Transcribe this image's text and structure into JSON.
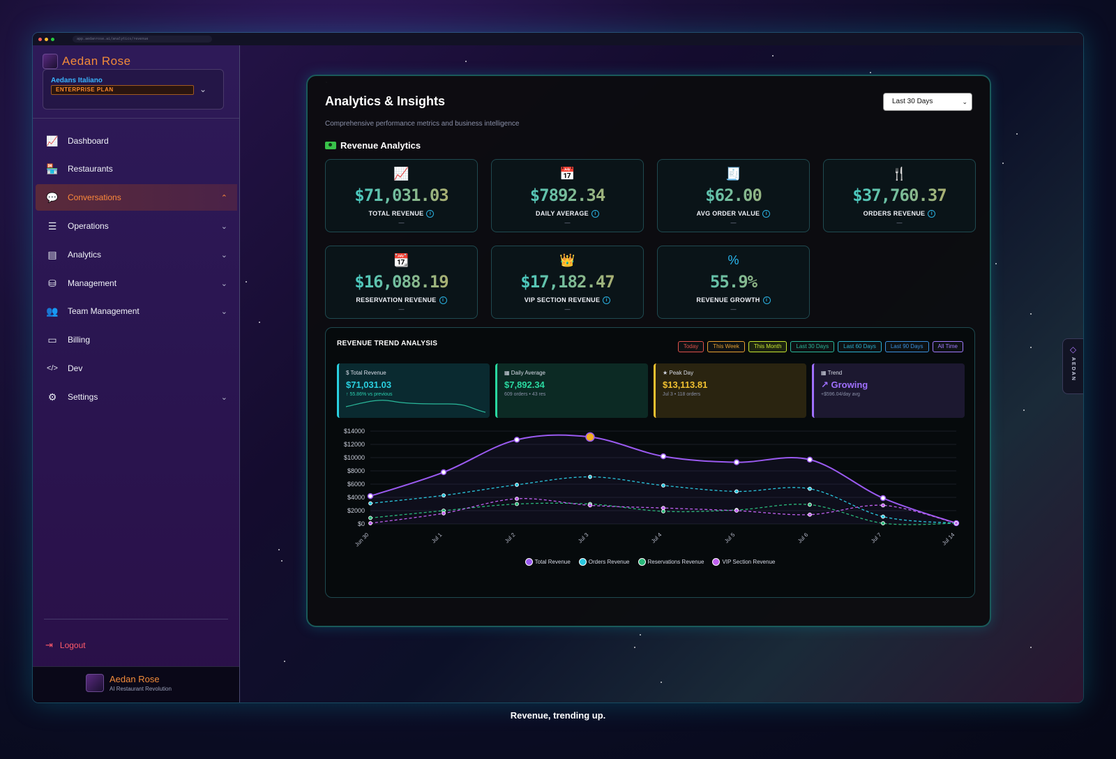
{
  "browser": {
    "url": "app.aedanrose.ai/analytics/revenue"
  },
  "sidebar": {
    "brand": "Aedan Rose",
    "org_name": "Aedans Italiano",
    "plan": "ENTERPRISE PLAN",
    "items": [
      {
        "label": "Dashboard",
        "icon": "chart-line-icon",
        "glyph": "📈"
      },
      {
        "label": "Restaurants",
        "icon": "store-icon",
        "glyph": "🏪"
      },
      {
        "label": "Conversations",
        "icon": "chat-bubbles-icon",
        "glyph": "💬"
      },
      {
        "label": "Operations",
        "icon": "checklist-icon",
        "glyph": "☰"
      },
      {
        "label": "Analytics",
        "icon": "bar-chart-icon",
        "glyph": "▤"
      },
      {
        "label": "Management",
        "icon": "database-icon",
        "glyph": "⛁"
      },
      {
        "label": "Team Management",
        "icon": "users-icon",
        "glyph": "👥"
      },
      {
        "label": "Billing",
        "icon": "credit-card-icon",
        "glyph": "▭"
      },
      {
        "label": "Dev",
        "icon": "code-icon",
        "glyph": "</>"
      },
      {
        "label": "Settings",
        "icon": "gear-icon",
        "glyph": "⚙"
      }
    ],
    "logout": "Logout",
    "footer_name": "Aedan Rose",
    "footer_tagline": "AI Restaurant Revolution"
  },
  "page": {
    "title": "Analytics & Insights",
    "subtitle": "Comprehensive performance metrics and business intelligence",
    "range": "Last 30 Days",
    "section": "Revenue Analytics"
  },
  "kpis": [
    {
      "value": "$71,031.03",
      "label": "TOTAL REVENUE",
      "sub": "—",
      "icon": "chart-line-icon",
      "glyph": "📈",
      "color": "#2ab8f0"
    },
    {
      "value": "$7892.34",
      "label": "DAILY AVERAGE",
      "sub": "—",
      "icon": "calendar-icon",
      "glyph": "📅",
      "color": "#2ab8f0"
    },
    {
      "value": "$62.00",
      "label": "AVG ORDER VALUE",
      "sub": "—",
      "icon": "receipt-icon",
      "glyph": "🧾",
      "color": "#2ab8f0"
    },
    {
      "value": "$37,760.37",
      "label": "ORDERS REVENUE",
      "sub": "—",
      "icon": "utensils-icon",
      "glyph": "🍴",
      "color": "#2ab8f0"
    },
    {
      "value": "$16,088.19",
      "label": "RESERVATION REVENUE",
      "sub": "—",
      "icon": "calendar-check-icon",
      "glyph": "📆",
      "color": "#2ab8f0"
    },
    {
      "value": "$17,182.47",
      "label": "VIP SECTION REVENUE",
      "sub": "—",
      "icon": "crown-icon",
      "glyph": "👑",
      "color": "#a04aff"
    },
    {
      "value": "55.9%",
      "label": "REVENUE GROWTH",
      "sub": "—",
      "icon": "percent-icon",
      "glyph": "%",
      "color": "#2ab8f0"
    }
  ],
  "trend": {
    "title": "REVENUE TREND ANALYSIS",
    "pills": [
      {
        "label": "Today",
        "color": "#e0504a"
      },
      {
        "label": "This Week",
        "color": "#e8a030"
      },
      {
        "label": "This Month",
        "color": "#c8e830",
        "active": true
      },
      {
        "label": "Last 30 Days",
        "color": "#2ab89a"
      },
      {
        "label": "Last 60 Days",
        "color": "#2ab0d0"
      },
      {
        "label": "Last 90 Days",
        "color": "#3a90e0"
      },
      {
        "label": "All Time",
        "color": "#a07aff"
      }
    ],
    "cards": [
      {
        "label": "$ Total Revenue",
        "value": "$71,031.03",
        "sub": "↑ 55.86% vs previous",
        "color": "#2ad0e0",
        "bg": "#0a2a30"
      },
      {
        "label": "▦ Daily Average",
        "value": "$7,892.34",
        "sub": "609 orders • 43 res",
        "color": "#2ad8a0",
        "bg": "#0c2a24"
      },
      {
        "label": "★ Peak Day",
        "value": "$13,113.81",
        "sub": "Jul 3 • 118 orders",
        "color": "#f0c030",
        "bg": "#2a2410"
      },
      {
        "label": "▦ Trend",
        "value": "↗ Growing",
        "sub": "+$596.04/day avg",
        "color": "#a070ff",
        "bg": "#1c1830"
      }
    ]
  },
  "chart_data": {
    "type": "line",
    "x": [
      "Jun 30",
      "Jul 1",
      "Jul 2",
      "Jul 3",
      "Jul 4",
      "Jul 5",
      "Jul 6",
      "Jul 7",
      "Jul 14"
    ],
    "ylim": [
      0,
      14000
    ],
    "yticks": [
      "$14000",
      "$12000",
      "$10000",
      "$8000",
      "$6000",
      "$4000",
      "$2000",
      "$0"
    ],
    "series": [
      {
        "name": "Total Revenue",
        "color": "#9a5af0",
        "values": [
          4200,
          7800,
          12700,
          13114,
          10200,
          9300,
          9700,
          3900,
          100
        ]
      },
      {
        "name": "Orders Revenue",
        "color": "#2ac8e0",
        "values": [
          3100,
          4300,
          5900,
          7100,
          5800,
          4900,
          5300,
          1100,
          100
        ]
      },
      {
        "name": "Reservations Revenue",
        "color": "#2ab87a",
        "values": [
          900,
          2000,
          3000,
          3000,
          1900,
          2100,
          2900,
          100,
          100
        ]
      },
      {
        "name": "VIP Section Revenue",
        "color": "#c060f0",
        "values": [
          100,
          1600,
          3800,
          2800,
          2400,
          2000,
          1400,
          2800,
          100
        ]
      }
    ],
    "peak_index": 3
  },
  "side_tab": "AEDAN",
  "caption": "Revenue, trending up."
}
